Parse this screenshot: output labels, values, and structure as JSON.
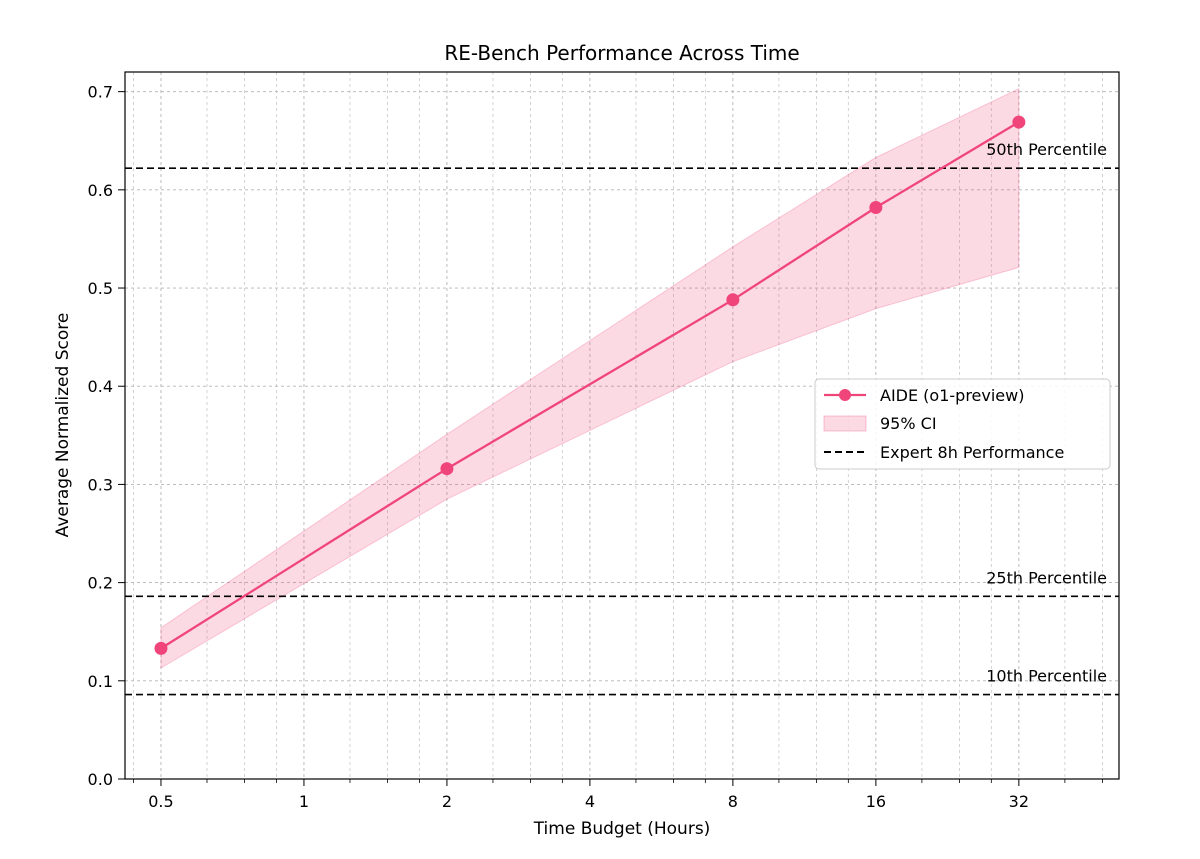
{
  "chart_data": {
    "type": "line",
    "title": "RE-Bench Performance Across Time",
    "xlabel": "Time Budget (Hours)",
    "ylabel": "Average Normalized Score",
    "xscale": "log2",
    "xlim": [
      0.42,
      52
    ],
    "ylim": [
      0.0,
      0.72
    ],
    "x_ticks": [
      0.5,
      1,
      2,
      4,
      8,
      16,
      32
    ],
    "x_tick_labels": [
      "0.5",
      "1",
      "2",
      "4",
      "8",
      "16",
      "32"
    ],
    "y_ticks": [
      0.0,
      0.1,
      0.2,
      0.3,
      0.4,
      0.5,
      0.6,
      0.7
    ],
    "y_tick_labels": [
      "0.0",
      "0.1",
      "0.2",
      "0.3",
      "0.4",
      "0.5",
      "0.6",
      "0.7"
    ],
    "grid": true,
    "legend_position": "center-right",
    "series": [
      {
        "name": "AIDE (o1-preview)",
        "color": "#f0457a",
        "x": [
          0.5,
          2,
          8,
          16,
          32
        ],
        "y": [
          0.133,
          0.316,
          0.488,
          0.582,
          0.669
        ]
      }
    ],
    "confidence_band": {
      "name": "95% CI",
      "color": "#f0457a",
      "x": [
        0.5,
        2,
        8,
        16,
        32
      ],
      "lower": [
        0.113,
        0.285,
        0.425,
        0.479,
        0.521
      ],
      "upper": [
        0.154,
        0.351,
        0.542,
        0.633,
        0.703
      ]
    },
    "reference_lines": {
      "legend_name": "Expert 8h Performance",
      "style": "dashed",
      "color": "#000000",
      "lines": [
        {
          "label": "50th Percentile",
          "y": 0.622
        },
        {
          "label": "25th Percentile",
          "y": 0.186
        },
        {
          "label": "10th Percentile",
          "y": 0.086
        }
      ]
    }
  }
}
